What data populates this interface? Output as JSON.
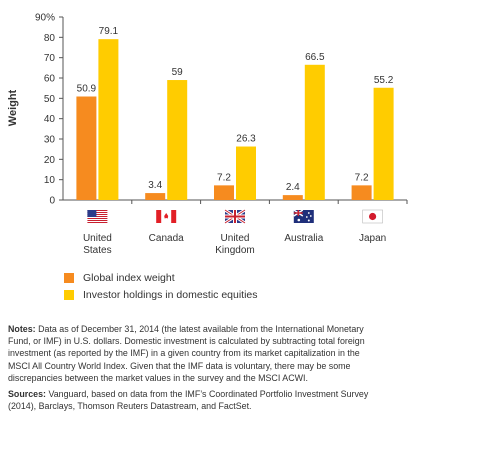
{
  "chart_data": {
    "type": "bar",
    "ylabel": "Weight",
    "ylim": [
      0,
      90
    ],
    "yticks": [
      "0",
      "10",
      "20",
      "30",
      "40",
      "50",
      "60",
      "70",
      "80",
      "90%"
    ],
    "categories": [
      "United States",
      "Canada",
      "United Kingdom",
      "Australia",
      "Japan"
    ],
    "category_lines": [
      [
        "United",
        "States"
      ],
      [
        "Canada"
      ],
      [
        "United",
        "Kingdom"
      ],
      [
        "Australia"
      ],
      [
        "Japan"
      ]
    ],
    "flag_icons": [
      "us-flag-icon",
      "canada-flag-icon",
      "uk-flag-icon",
      "australia-flag-icon",
      "japan-flag-icon"
    ],
    "series": [
      {
        "name": "Global index weight",
        "color": "#f68b1f",
        "values": [
          50.9,
          3.4,
          7.2,
          2.4,
          7.2
        ],
        "labels": [
          "50.9",
          "3.4",
          "7.2",
          "2.4",
          "7.2"
        ]
      },
      {
        "name": "Investor holdings in domestic equities",
        "color": "#ffcc00",
        "values": [
          79.1,
          59,
          26.3,
          66.5,
          55.2
        ],
        "labels": [
          "79.1",
          "59",
          "26.3",
          "66.5",
          "55.2"
        ]
      }
    ],
    "grid": false,
    "legend_position": "bottom-left"
  },
  "legend": {
    "items": [
      "Global index weight",
      "Investor holdings in domestic equities"
    ]
  },
  "notes": {
    "notes_label": "Notes:",
    "notes_text": "Data as of December 31, 2014 (the latest available from the International Monetary Fund, or IMF) in U.S. dollars. Domestic investment is calculated by subtracting total foreign investment (as reported by the IMF) in a given country from its market capitalization in the MSCI All Country World Index. Given that the IMF data is voluntary, there may be some discrepancies between the market values in the survey and the MSCI ACWI.",
    "sources_label": "Sources:",
    "sources_text": "Vanguard, based on data from the IMF’s Coordinated Portfolio Investment Survey (2014), Barclays, Thomson Reuters Datastream, and FactSet."
  }
}
